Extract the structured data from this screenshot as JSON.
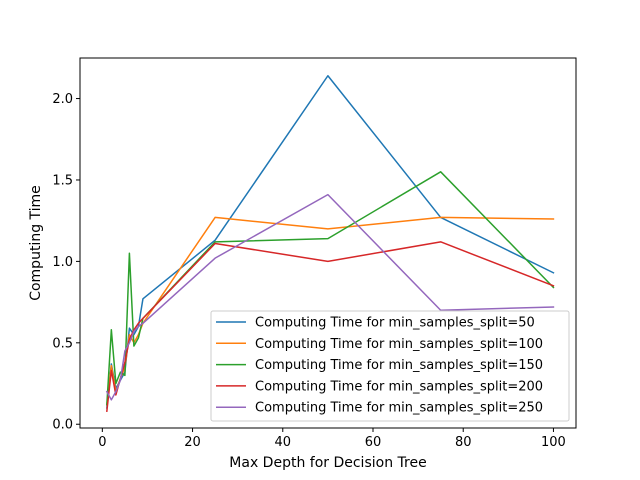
{
  "chart_data": {
    "type": "line",
    "title": "",
    "xlabel": "Max Depth for Decision Tree",
    "ylabel": "Computing Time",
    "xlim": [
      -4.95,
      105
    ],
    "ylim": [
      -0.0231,
      2.249
    ],
    "xticks": [
      0,
      20,
      40,
      60,
      80,
      100
    ],
    "xtick_labels": [
      "0",
      "20",
      "40",
      "60",
      "80",
      "100"
    ],
    "yticks": [
      0.0,
      0.5,
      1.0,
      1.5,
      2.0
    ],
    "ytick_labels": [
      "0.0",
      "0.5",
      "1.0",
      "1.5",
      "2.0"
    ],
    "grid": false,
    "legend_position": "lower right",
    "x": [
      1,
      2,
      3,
      4,
      5,
      6,
      7,
      8,
      9,
      25,
      50,
      75,
      100
    ],
    "series": [
      {
        "name": "Computing Time for min_samples_split=50",
        "color": "#1f77b4",
        "values": [
          0.1,
          0.37,
          0.22,
          0.27,
          0.32,
          0.59,
          0.55,
          0.6,
          0.77,
          1.13,
          2.14,
          1.27,
          0.93
        ]
      },
      {
        "name": "Computing Time for min_samples_split=100",
        "color": "#ff7f0e",
        "values": [
          0.12,
          0.36,
          0.2,
          0.28,
          0.35,
          0.55,
          0.5,
          0.55,
          0.62,
          1.27,
          1.2,
          1.27,
          1.26
        ]
      },
      {
        "name": "Computing Time for min_samples_split=150",
        "color": "#2ca02c",
        "values": [
          0.12,
          0.58,
          0.25,
          0.32,
          0.3,
          1.05,
          0.48,
          0.53,
          0.65,
          1.12,
          1.14,
          1.55,
          0.84
        ]
      },
      {
        "name": "Computing Time for min_samples_split=200",
        "color": "#d62728",
        "values": [
          0.08,
          0.33,
          0.18,
          0.28,
          0.38,
          0.52,
          0.58,
          0.62,
          0.65,
          1.11,
          1.0,
          1.12,
          0.85
        ]
      },
      {
        "name": "Computing Time for min_samples_split=250",
        "color": "#9467bd",
        "values": [
          0.2,
          0.15,
          0.2,
          0.27,
          0.45,
          0.5,
          0.57,
          0.6,
          0.62,
          1.02,
          1.41,
          0.7,
          0.72
        ]
      }
    ]
  }
}
